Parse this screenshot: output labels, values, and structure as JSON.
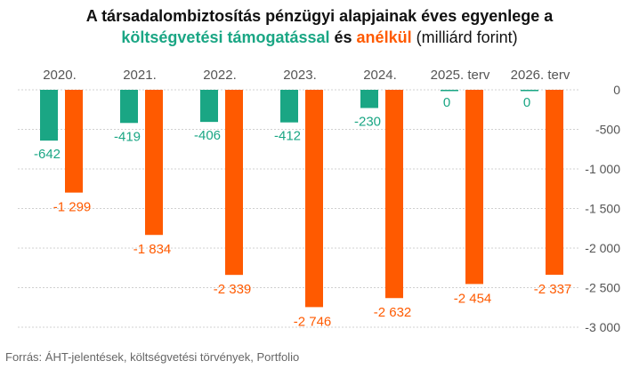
{
  "title": {
    "line1": "A társadalombiztosítás pénzügyi alapjainak éves egyenlege a",
    "with_support": "költségvetési támogatással",
    "conj": " és ",
    "without_support": "anélkül",
    "unit": " (milliárd forint)"
  },
  "source": "Forrás: ÁHT-jelentések,  költségvetési törvények, Portfolio",
  "colors": {
    "with_support": "#1aa684",
    "without_support": "#ff5a00",
    "grid": "#d0d0d0",
    "text": "#555555"
  },
  "chart_data": {
    "type": "bar",
    "categories": [
      "2020.",
      "2021.",
      "2022.",
      "2023.",
      "2024.",
      "2025. terv",
      "2026. terv"
    ],
    "series": [
      {
        "name": "költségvetési támogatással",
        "values": [
          -642,
          -419,
          -406,
          -412,
          -230,
          0,
          0
        ],
        "labels": [
          "-642",
          "-419",
          "-406",
          "-412",
          "-230",
          "0",
          "0"
        ]
      },
      {
        "name": "anélkül",
        "values": [
          -1299,
          -1834,
          -2339,
          -2746,
          -2632,
          -2454,
          -2337
        ],
        "labels": [
          "-1 299",
          "-1 834",
          "-2 339",
          "-2 746",
          "-2 632",
          "-2 454",
          "-2 337"
        ]
      }
    ],
    "ylim": [
      -3000,
      0
    ],
    "yticks": [
      0,
      -500,
      -1000,
      -1500,
      -2000,
      -2500,
      -3000
    ],
    "ytick_labels": [
      "0",
      "-500",
      "-1 000",
      "-1 500",
      "-2 000",
      "-2 500",
      "-3 000"
    ],
    "y_axis_position": "right",
    "grid": true,
    "category_labels_position": "top"
  }
}
